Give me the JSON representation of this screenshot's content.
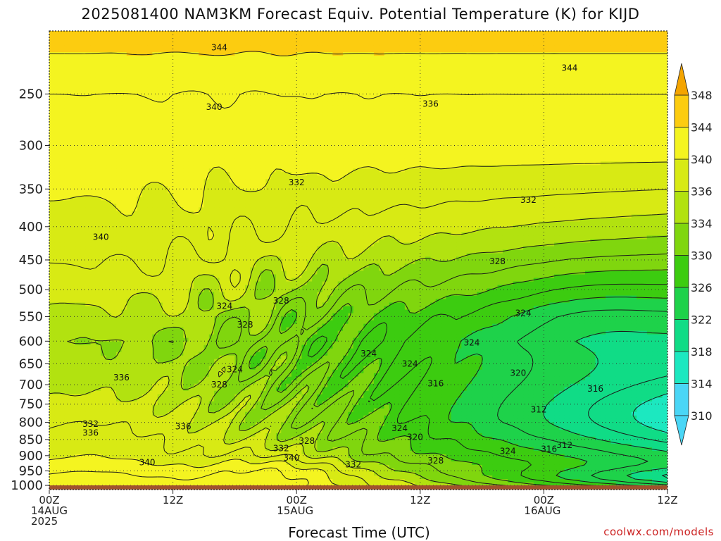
{
  "chart_data": {
    "type": "heatmap",
    "title": "2025081400 NAM3KM Forecast Equiv. Potential Temperature (K) for KIJD",
    "xlabel": "Forecast Time (UTC)",
    "ylabel": "",
    "x_ticks": [
      {
        "value": 0,
        "lines": [
          "00Z",
          "14AUG",
          "2025"
        ]
      },
      {
        "value": 12,
        "lines": [
          "12Z"
        ]
      },
      {
        "value": 24,
        "lines": [
          "00Z",
          "15AUG"
        ]
      },
      {
        "value": 36,
        "lines": [
          "12Z"
        ]
      },
      {
        "value": 48,
        "lines": [
          "00Z",
          "16AUG"
        ]
      },
      {
        "value": 60,
        "lines": [
          "12Z"
        ]
      }
    ],
    "xlim": [
      0,
      60
    ],
    "y_ticks": [
      250,
      300,
      350,
      400,
      450,
      500,
      550,
      600,
      650,
      700,
      750,
      800,
      850,
      900,
      950,
      1000
    ],
    "ylim": [
      200,
      1015
    ],
    "yscale": "log-pressure",
    "grid": true,
    "colorbar": {
      "levels": [
        310,
        314,
        318,
        322,
        326,
        330,
        334,
        336,
        340,
        344,
        348
      ],
      "colors": [
        "#4ad6f6",
        "#1ce8c0",
        "#10dc86",
        "#1ed24a",
        "#3ccc10",
        "#80d60e",
        "#b2e210",
        "#d8ea14",
        "#f4f420",
        "#fccc10",
        "#f4a400"
      ],
      "low_color": "#4ad6f6",
      "high_color": "#f4a400"
    },
    "contour_labels": [
      {
        "x": 16.5,
        "p": 212,
        "text": "344"
      },
      {
        "x": 50.5,
        "p": 228,
        "text": "344"
      },
      {
        "x": 16.0,
        "p": 262,
        "text": "340"
      },
      {
        "x": 37.0,
        "p": 259,
        "text": "336"
      },
      {
        "x": 24.0,
        "p": 342,
        "text": "332"
      },
      {
        "x": 46.5,
        "p": 364,
        "text": "332"
      },
      {
        "x": 5.0,
        "p": 415,
        "text": "340"
      },
      {
        "x": 43.5,
        "p": 452,
        "text": "328"
      },
      {
        "x": 22.5,
        "p": 520,
        "text": "328"
      },
      {
        "x": 17.0,
        "p": 530,
        "text": "324"
      },
      {
        "x": 19.0,
        "p": 566,
        "text": "328"
      },
      {
        "x": 46.0,
        "p": 543,
        "text": "324"
      },
      {
        "x": 41.0,
        "p": 603,
        "text": "324"
      },
      {
        "x": 31.0,
        "p": 627,
        "text": "324"
      },
      {
        "x": 35.0,
        "p": 650,
        "text": "324"
      },
      {
        "x": 18.0,
        "p": 663,
        "text": "324"
      },
      {
        "x": 45.5,
        "p": 672,
        "text": "320"
      },
      {
        "x": 7.0,
        "p": 683,
        "text": "336"
      },
      {
        "x": 37.5,
        "p": 697,
        "text": "316"
      },
      {
        "x": 53.0,
        "p": 710,
        "text": "316"
      },
      {
        "x": 16.5,
        "p": 700,
        "text": "328"
      },
      {
        "x": 47.5,
        "p": 765,
        "text": "312"
      },
      {
        "x": 4.0,
        "p": 805,
        "text": "332"
      },
      {
        "x": 13.0,
        "p": 812,
        "text": "336"
      },
      {
        "x": 34.0,
        "p": 817,
        "text": "324"
      },
      {
        "x": 4.0,
        "p": 830,
        "text": "336"
      },
      {
        "x": 35.5,
        "p": 843,
        "text": "320"
      },
      {
        "x": 25.0,
        "p": 855,
        "text": "328"
      },
      {
        "x": 22.5,
        "p": 877,
        "text": "332"
      },
      {
        "x": 50.0,
        "p": 867,
        "text": "312"
      },
      {
        "x": 48.5,
        "p": 879,
        "text": "316"
      },
      {
        "x": 44.5,
        "p": 886,
        "text": "324"
      },
      {
        "x": 23.5,
        "p": 907,
        "text": "340"
      },
      {
        "x": 9.5,
        "p": 922,
        "text": "340"
      },
      {
        "x": 37.5,
        "p": 916,
        "text": "328"
      },
      {
        "x": 29.5,
        "p": 929,
        "text": "332"
      }
    ],
    "ground_below_p": 1000
  },
  "footer": {
    "credit": "coolwx.com/models"
  }
}
